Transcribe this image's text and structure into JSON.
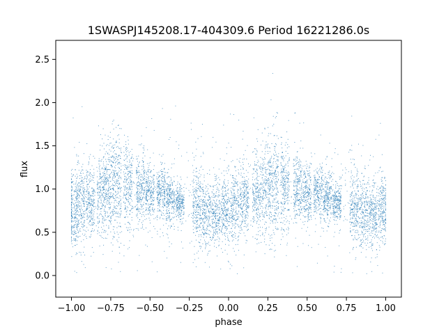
{
  "chart_data": {
    "type": "scatter",
    "title": "1SWASPJ145208.17-404309.6 Period 16221286.0s",
    "xlabel": "phase",
    "ylabel": "flux",
    "xlim": [
      -1.1,
      1.1
    ],
    "ylim": [
      -0.25,
      2.72
    ],
    "x_ticks": [
      -1.0,
      -0.75,
      -0.5,
      -0.25,
      0.0,
      0.25,
      0.5,
      0.75,
      1.0
    ],
    "x_tick_labels": [
      "−1.00",
      "−0.75",
      "−0.50",
      "−0.25",
      "0.00",
      "0.25",
      "0.50",
      "0.75",
      "1.00"
    ],
    "y_ticks": [
      0.0,
      0.5,
      1.0,
      1.5,
      2.0,
      2.5
    ],
    "y_tick_labels": [
      "0.0",
      "0.5",
      "1.0",
      "1.5",
      "2.0",
      "2.5"
    ],
    "grid": false,
    "marker_color": "#1f77b4",
    "x_range": [
      -1.0,
      1.0
    ],
    "clusters": [
      {
        "x": -0.99,
        "y_center": 0.75,
        "y_spread": 0.4
      },
      {
        "x": -0.94,
        "y_center": 0.8,
        "y_spread": 0.4
      },
      {
        "x": -0.88,
        "y_center": 0.85,
        "y_spread": 0.4
      },
      {
        "x": -0.81,
        "y_center": 0.95,
        "y_spread": 0.45
      },
      {
        "x": -0.76,
        "y_center": 1.0,
        "y_spread": 0.5
      },
      {
        "x": -0.71,
        "y_center": 1.05,
        "y_spread": 0.55
      },
      {
        "x": -0.64,
        "y_center": 1.05,
        "y_spread": 0.45
      },
      {
        "x": -0.56,
        "y_center": 1.0,
        "y_spread": 0.35
      },
      {
        "x": -0.5,
        "y_center": 0.95,
        "y_spread": 0.3
      },
      {
        "x": -0.43,
        "y_center": 0.95,
        "y_spread": 0.25
      },
      {
        "x": -0.37,
        "y_center": 0.9,
        "y_spread": 0.25
      },
      {
        "x": -0.31,
        "y_center": 0.85,
        "y_spread": 0.2
      },
      {
        "x": -0.2,
        "y_center": 0.8,
        "y_spread": 0.4
      },
      {
        "x": -0.14,
        "y_center": 0.7,
        "y_spread": 0.35
      },
      {
        "x": -0.08,
        "y_center": 0.7,
        "y_spread": 0.35
      },
      {
        "x": -0.02,
        "y_center": 0.75,
        "y_spread": 0.35
      },
      {
        "x": 0.04,
        "y_center": 0.8,
        "y_spread": 0.4
      },
      {
        "x": 0.1,
        "y_center": 0.85,
        "y_spread": 0.4
      },
      {
        "x": 0.18,
        "y_center": 0.95,
        "y_spread": 0.45
      },
      {
        "x": 0.24,
        "y_center": 1.0,
        "y_spread": 0.5
      },
      {
        "x": 0.29,
        "y_center": 1.05,
        "y_spread": 0.55
      },
      {
        "x": 0.36,
        "y_center": 1.05,
        "y_spread": 0.45
      },
      {
        "x": 0.44,
        "y_center": 1.0,
        "y_spread": 0.35
      },
      {
        "x": 0.5,
        "y_center": 0.95,
        "y_spread": 0.3
      },
      {
        "x": 0.57,
        "y_center": 0.95,
        "y_spread": 0.25
      },
      {
        "x": 0.63,
        "y_center": 0.9,
        "y_spread": 0.25
      },
      {
        "x": 0.69,
        "y_center": 0.85,
        "y_spread": 0.2
      },
      {
        "x": 0.8,
        "y_center": 0.8,
        "y_spread": 0.4
      },
      {
        "x": 0.86,
        "y_center": 0.7,
        "y_spread": 0.35
      },
      {
        "x": 0.92,
        "y_center": 0.7,
        "y_spread": 0.35
      },
      {
        "x": 0.98,
        "y_center": 0.75,
        "y_spread": 0.35
      }
    ]
  }
}
